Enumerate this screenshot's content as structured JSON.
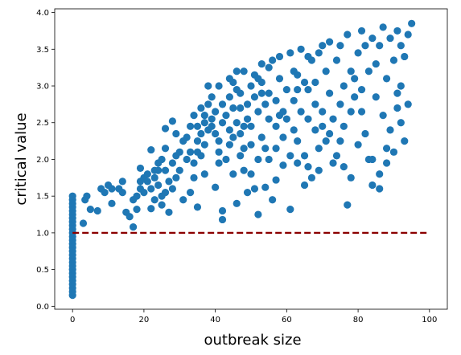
{
  "chart_data": {
    "type": "scatter",
    "title": "",
    "xlabel": "outbreak size",
    "ylabel": "critical value",
    "xlim": [
      -5,
      105
    ],
    "ylim": [
      -0.04,
      4.05
    ],
    "xticks": [
      0,
      20,
      40,
      60,
      80,
      100
    ],
    "yticks": [
      0.0,
      0.5,
      1.0,
      1.5,
      2.0,
      2.5,
      3.0,
      3.5,
      4.0
    ],
    "grid": false,
    "legend": "none",
    "marker_color": "#1f77b4",
    "series": [
      {
        "points": [
          [
            0,
            0.15
          ],
          [
            0,
            0.2
          ],
          [
            0,
            0.25
          ],
          [
            0,
            0.3
          ],
          [
            0,
            0.35
          ],
          [
            0,
            0.4
          ],
          [
            0,
            0.45
          ],
          [
            0,
            0.5
          ],
          [
            0,
            0.55
          ],
          [
            0,
            0.6
          ],
          [
            0,
            0.65
          ],
          [
            0,
            0.7
          ],
          [
            0,
            0.75
          ],
          [
            0,
            0.8
          ],
          [
            0,
            0.85
          ],
          [
            0,
            0.9
          ],
          [
            0,
            0.95
          ],
          [
            0,
            1.0
          ],
          [
            0,
            1.05
          ],
          [
            0,
            1.1
          ],
          [
            0,
            1.15
          ],
          [
            0,
            1.2
          ],
          [
            0,
            1.25
          ],
          [
            0,
            1.3
          ],
          [
            0,
            1.35
          ],
          [
            0,
            1.4
          ],
          [
            0,
            1.45
          ],
          [
            0,
            1.5
          ],
          [
            3,
            1.13
          ],
          [
            3.5,
            1.45
          ],
          [
            4,
            1.5
          ],
          [
            5,
            1.32
          ],
          [
            8,
            1.6
          ],
          [
            10,
            1.65
          ],
          [
            11,
            1.4
          ],
          [
            11,
            1.6
          ],
          [
            14,
            1.7
          ],
          [
            14,
            1.55
          ],
          [
            15,
            1.28
          ],
          [
            16,
            1.22
          ],
          [
            17,
            1.45
          ],
          [
            17,
            1.08
          ],
          [
            18,
            1.5
          ],
          [
            19,
            1.6
          ],
          [
            19,
            1.88
          ],
          [
            20,
            1.75
          ],
          [
            21,
            1.8
          ],
          [
            21,
            1.7
          ],
          [
            22,
            1.6
          ],
          [
            22,
            1.33
          ],
          [
            22,
            2.13
          ],
          [
            23,
            1.85
          ],
          [
            23,
            1.75
          ],
          [
            24,
            1.95
          ],
          [
            24,
            1.65
          ],
          [
            25,
            2.0
          ],
          [
            25,
            1.5
          ],
          [
            25,
            1.38
          ],
          [
            26,
            2.15
          ],
          [
            26,
            1.85
          ],
          [
            26,
            2.42
          ],
          [
            27,
            1.7
          ],
          [
            27,
            1.28
          ],
          [
            28,
            1.95
          ],
          [
            28,
            2.52
          ],
          [
            29,
            2.05
          ],
          [
            29,
            1.75
          ],
          [
            30,
            2.1
          ],
          [
            30,
            1.85
          ],
          [
            31,
            1.45
          ],
          [
            32,
            2.3
          ],
          [
            32,
            2.0
          ],
          [
            33,
            1.55
          ],
          [
            33,
            2.1
          ],
          [
            34,
            2.6
          ],
          [
            34,
            1.75
          ],
          [
            34,
            1.95
          ],
          [
            35,
            2.45
          ],
          [
            35,
            2.25
          ],
          [
            35,
            2.1
          ],
          [
            35,
            1.35
          ],
          [
            36,
            2.7
          ],
          [
            36,
            2.35
          ],
          [
            36,
            2.05
          ],
          [
            37,
            2.5
          ],
          [
            37,
            1.8
          ],
          [
            37,
            2.2
          ],
          [
            38,
            2.75
          ],
          [
            38,
            3.0
          ],
          [
            38,
            2.4
          ],
          [
            39,
            2.85
          ],
          [
            39,
            2.55
          ],
          [
            40,
            2.65
          ],
          [
            40,
            2.35
          ],
          [
            40,
            1.62
          ],
          [
            41,
            3.0
          ],
          [
            41,
            2.1
          ],
          [
            41,
            1.95
          ],
          [
            42,
            2.75
          ],
          [
            42,
            2.5
          ],
          [
            42,
            1.18
          ],
          [
            43,
            2.0
          ],
          [
            43,
            2.6
          ],
          [
            44,
            3.1
          ],
          [
            44,
            2.85
          ],
          [
            44,
            2.4
          ],
          [
            45,
            3.05
          ],
          [
            45,
            2.7
          ],
          [
            45,
            2.3
          ],
          [
            45,
            1.8
          ],
          [
            46,
            3.2
          ],
          [
            46,
            2.95
          ],
          [
            46,
            2.5
          ],
          [
            46,
            1.4
          ],
          [
            47,
            2.9
          ],
          [
            47,
            2.7
          ],
          [
            47,
            2.35
          ],
          [
            47,
            2.05
          ],
          [
            48,
            2.15
          ],
          [
            48,
            1.85
          ],
          [
            48,
            3.2
          ],
          [
            49,
            2.55
          ],
          [
            49,
            2.75
          ],
          [
            49,
            1.55
          ],
          [
            50,
            3.0
          ],
          [
            50,
            2.45
          ],
          [
            50,
            2.2
          ],
          [
            50,
            1.8
          ],
          [
            51,
            3.15
          ],
          [
            51,
            2.85
          ],
          [
            51,
            1.6
          ],
          [
            52,
            2.65
          ],
          [
            52,
            2.0
          ],
          [
            52,
            1.25
          ],
          [
            53,
            3.3
          ],
          [
            53,
            3.05
          ],
          [
            53,
            2.9
          ],
          [
            53,
            2.3
          ],
          [
            54,
            2.75
          ],
          [
            54,
            2.15
          ],
          [
            55,
            3.25
          ],
          [
            55,
            2.55
          ],
          [
            55,
            2.0
          ],
          [
            56,
            3.35
          ],
          [
            56,
            1.45
          ],
          [
            57,
            2.8
          ],
          [
            57,
            2.45
          ],
          [
            57,
            1.72
          ],
          [
            58,
            3.4
          ],
          [
            58,
            3.1
          ],
          [
            58,
            2.6
          ],
          [
            59,
            2.3
          ],
          [
            59,
            1.92
          ],
          [
            60,
            2.95
          ],
          [
            60,
            2.55
          ],
          [
            61,
            3.45
          ],
          [
            61,
            2.05
          ],
          [
            61,
            1.32
          ],
          [
            62,
            2.8
          ],
          [
            62,
            2.4
          ],
          [
            63,
            3.15
          ],
          [
            63,
            2.25
          ],
          [
            63,
            1.95
          ],
          [
            64,
            3.5
          ],
          [
            64,
            2.65
          ],
          [
            65,
            3.05
          ],
          [
            65,
            2.05
          ],
          [
            65,
            1.65
          ],
          [
            66,
            3.4
          ],
          [
            66,
            2.95
          ],
          [
            66,
            2.55
          ],
          [
            67,
            3.35
          ],
          [
            67,
            1.75
          ],
          [
            68,
            2.75
          ],
          [
            68,
            2.4
          ],
          [
            69,
            3.45
          ],
          [
            69,
            2.15
          ],
          [
            69,
            1.85
          ],
          [
            70,
            3.55
          ],
          [
            70,
            2.65
          ],
          [
            71,
            3.2
          ],
          [
            71,
            2.25
          ],
          [
            72,
            3.6
          ],
          [
            72,
            2.9
          ],
          [
            73,
            2.55
          ],
          [
            73,
            1.95
          ],
          [
            74,
            3.35
          ],
          [
            74,
            2.05
          ],
          [
            75,
            3.55
          ],
          [
            75,
            2.75
          ],
          [
            76,
            3.0
          ],
          [
            76,
            2.45
          ],
          [
            76,
            1.9
          ],
          [
            77,
            3.7
          ],
          [
            77,
            1.38
          ],
          [
            78,
            3.2
          ],
          [
            78,
            1.75
          ],
          [
            79,
            2.85
          ],
          [
            80,
            3.45
          ],
          [
            80,
            2.2
          ],
          [
            81,
            3.75
          ],
          [
            81,
            2.65
          ],
          [
            82,
            3.55
          ],
          [
            82,
            2.35
          ],
          [
            83,
            3.2
          ],
          [
            83,
            2.0
          ],
          [
            84,
            3.65
          ],
          [
            84,
            1.65
          ],
          [
            85,
            3.3
          ],
          [
            85,
            2.85
          ],
          [
            86,
            3.55
          ],
          [
            86,
            1.8
          ],
          [
            87,
            3.8
          ],
          [
            87,
            2.6
          ],
          [
            88,
            3.1
          ],
          [
            88,
            1.95
          ],
          [
            89,
            3.65
          ],
          [
            89,
            2.4
          ],
          [
            90,
            3.35
          ],
          [
            90,
            2.1
          ],
          [
            91,
            3.75
          ],
          [
            91,
            2.9
          ],
          [
            92,
            3.55
          ],
          [
            92,
            2.5
          ],
          [
            93,
            3.4
          ],
          [
            93,
            2.25
          ],
          [
            94,
            3.7
          ],
          [
            94,
            2.75
          ],
          [
            95,
            3.85
          ],
          [
            84,
            2.0
          ],
          [
            86,
            1.6
          ],
          [
            88,
            2.15
          ],
          [
            91,
            2.7
          ],
          [
            92,
            3.0
          ],
          [
            75,
            2.25
          ],
          [
            79,
            3.1
          ],
          [
            70,
            2.45
          ],
          [
            68,
            3.05
          ],
          [
            62,
            3.2
          ],
          [
            59,
            2.65
          ],
          [
            55,
            2.9
          ],
          [
            52,
            3.1
          ],
          [
            48,
            2.45
          ],
          [
            44,
            2.2
          ],
          [
            41,
            2.25
          ],
          [
            39,
            2.45
          ],
          [
            37,
            2.6
          ],
          [
            33,
            2.45
          ],
          [
            31,
            2.25
          ],
          [
            29,
            2.35
          ],
          [
            28,
            1.6
          ],
          [
            26,
            1.55
          ],
          [
            24,
            1.85
          ],
          [
            23,
            1.45
          ],
          [
            20,
            1.55
          ],
          [
            19,
            1.7
          ],
          [
            18,
            1.32
          ],
          [
            13,
            1.6
          ],
          [
            9,
            1.55
          ],
          [
            7,
            1.3
          ],
          [
            42,
            1.3
          ],
          [
            54,
            1.62
          ],
          [
            57,
            2.15
          ],
          [
            63,
            2.95
          ],
          [
            66,
            1.9
          ],
          [
            72,
            2.35
          ],
          [
            78,
            2.65
          ],
          [
            81,
            2.95
          ]
        ]
      },
      {
        "kind": "reference-line",
        "x": [
          0,
          100
        ],
        "y": [
          1.0,
          1.0
        ],
        "color": "#8b0000",
        "linestyle": "dashed"
      }
    ]
  }
}
